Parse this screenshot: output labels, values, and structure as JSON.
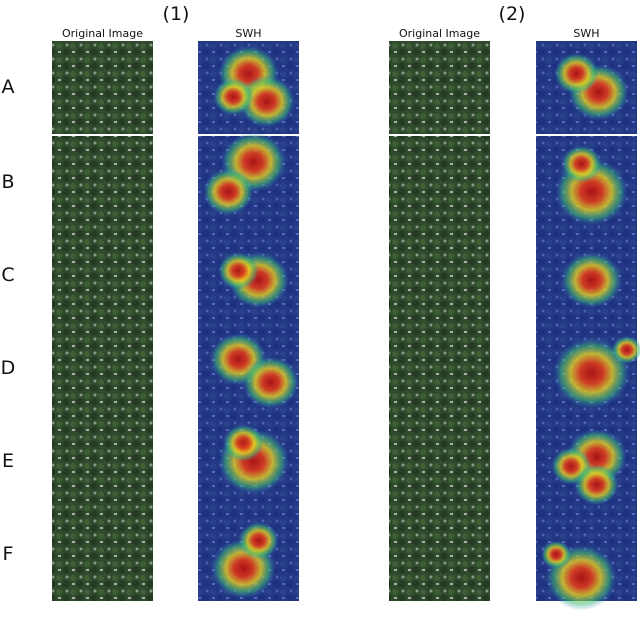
{
  "panels": [
    {
      "label": "(1)",
      "columns": [
        "Original Image",
        "SWH"
      ]
    },
    {
      "label": "(2)",
      "columns": [
        "Original Image",
        "SWH"
      ]
    }
  ],
  "rows": [
    "A",
    "B",
    "C",
    "D",
    "E",
    "F"
  ]
}
